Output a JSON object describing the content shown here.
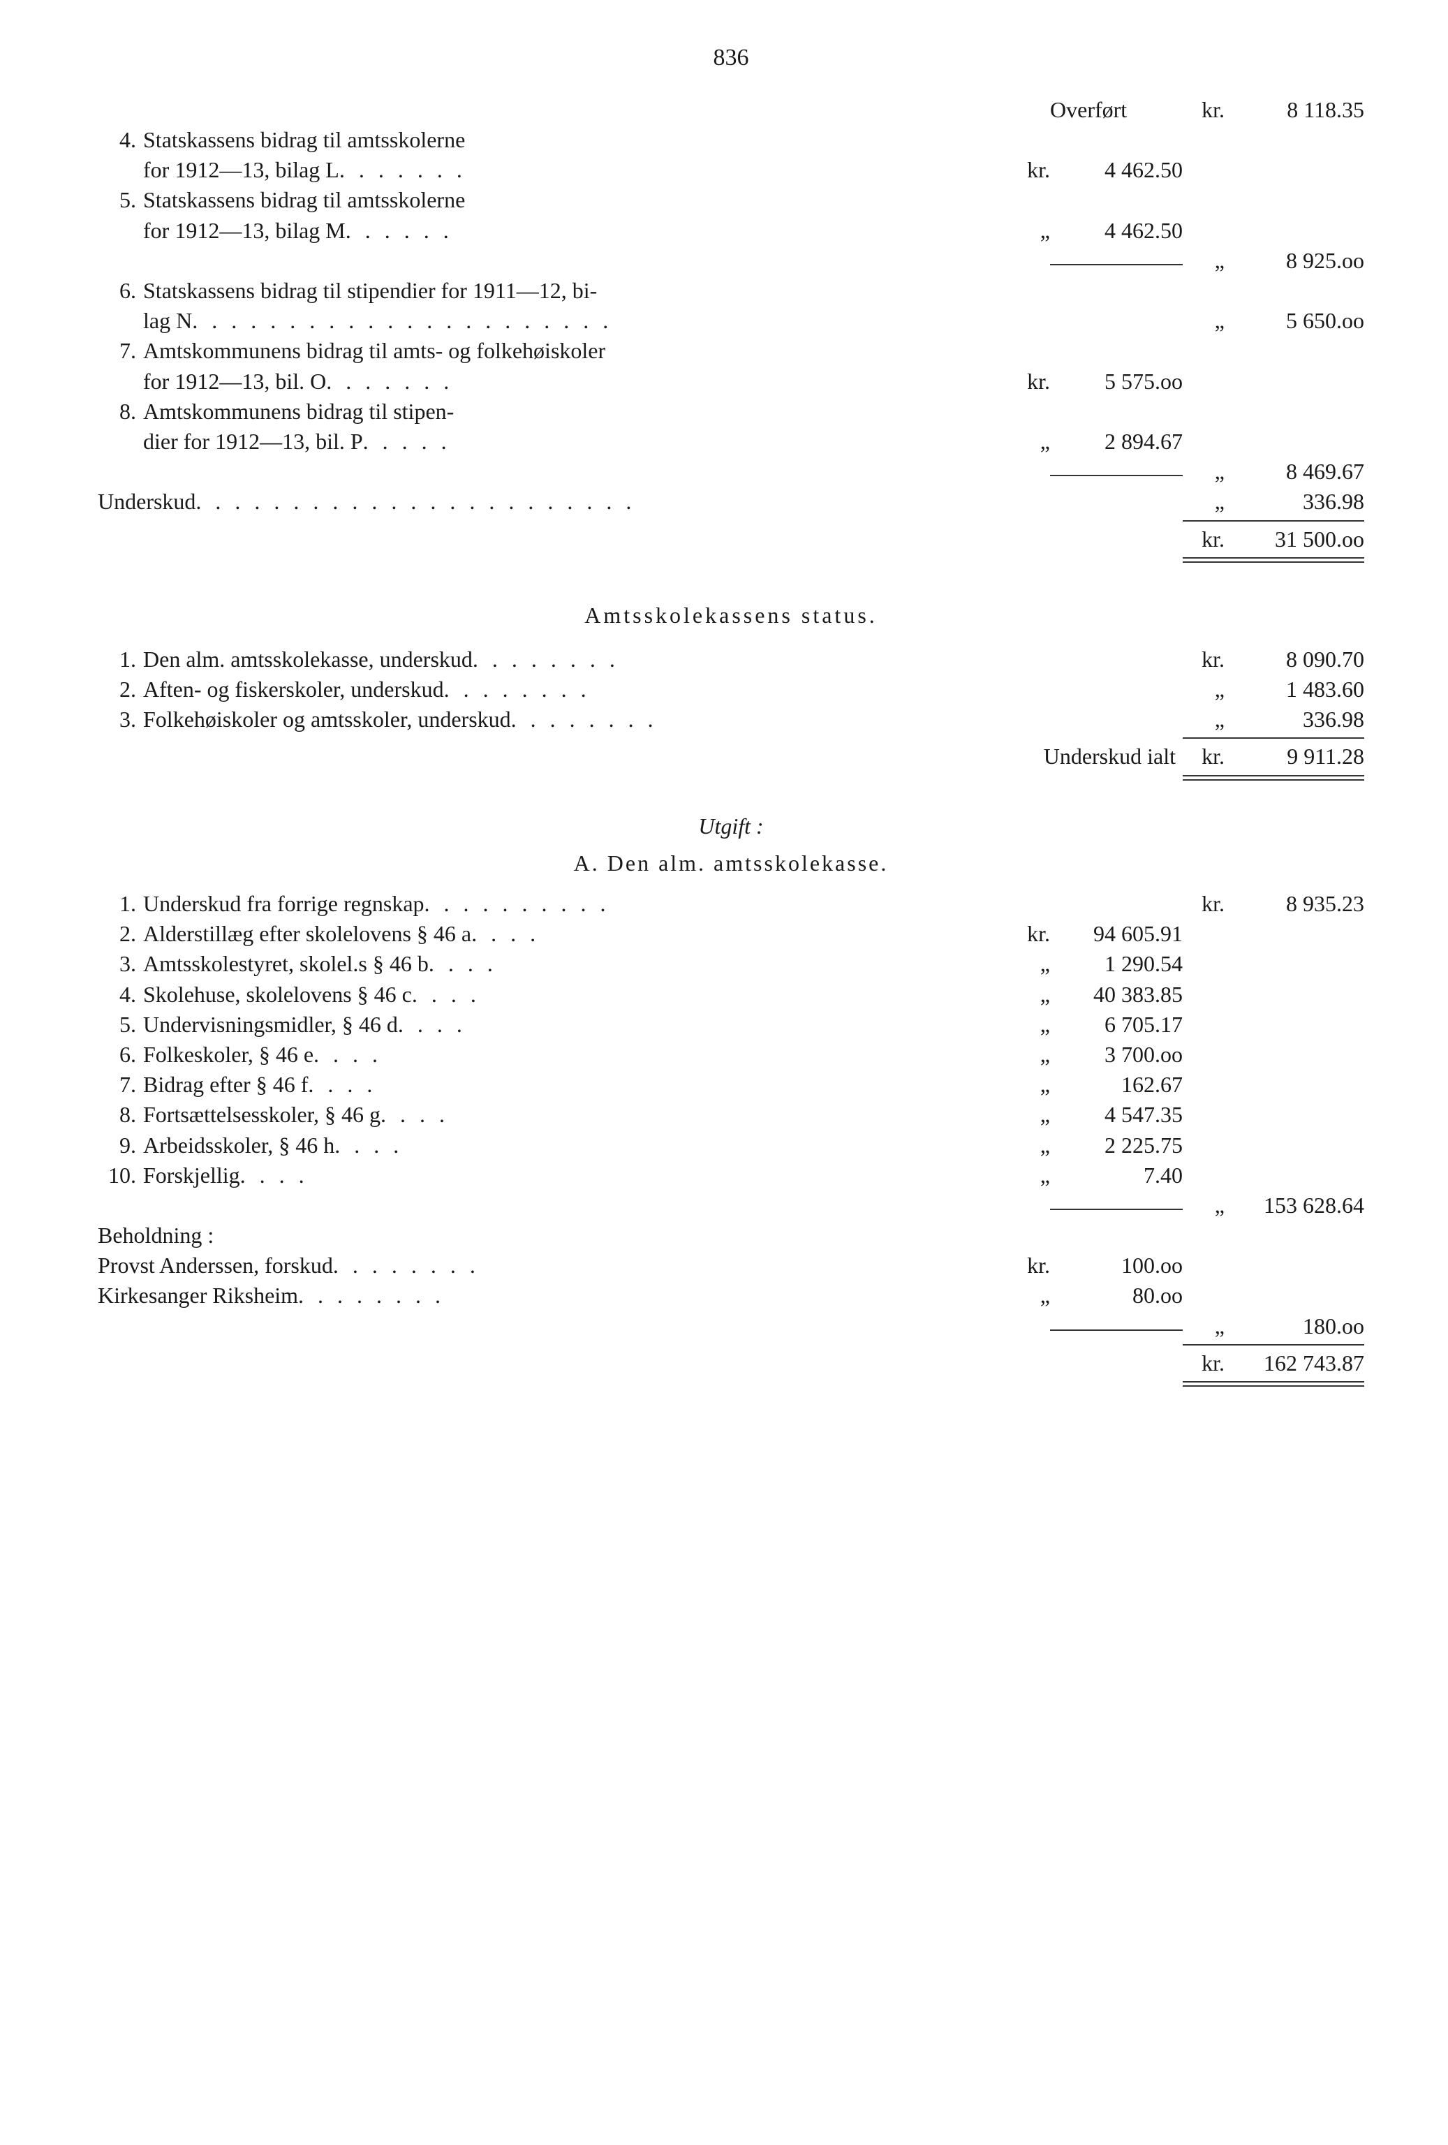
{
  "pageNumber": "836",
  "top": {
    "overfort": {
      "label": "Overført",
      "unit": "kr.",
      "amount": "8 118.35"
    },
    "items": [
      {
        "n": "4.",
        "text": "Statskassens bidrag til amtsskolerne",
        "text2": "for 1912—13, bilag L",
        "unit": "kr.",
        "amount": "4 462.50"
      },
      {
        "n": "5.",
        "text": "Statskassens bidrag til amtsskolerne",
        "text2": "for 1912—13, bilag M",
        "unit": "„",
        "amount": "4 462.50"
      }
    ],
    "subtotal1": {
      "unit": "„",
      "amount": "8 925.oo"
    },
    "item6": {
      "n": "6.",
      "text": "Statskassens bidrag til stipendier for 1911—12, bi-",
      "text2": "lag N",
      "unit": "„",
      "amount": "5 650.oo"
    },
    "item7": {
      "n": "7.",
      "text": "Amtskommunens bidrag til amts- og folkehøiskoler",
      "text2": "for 1912—13, bil. O",
      "unit": "kr.",
      "amount": "5 575.oo"
    },
    "item8": {
      "n": "8.",
      "text": "Amtskommunens bidrag til stipen-",
      "text2": "dier for 1912—13, bil. P",
      "unit": "„",
      "amount": "2 894.67"
    },
    "subtotal2": {
      "unit": "„",
      "amount": "8 469.67"
    },
    "underskud": {
      "label": "Underskud",
      "unit": "„",
      "amount": "336.98"
    },
    "total": {
      "unit": "kr.",
      "amount": "31 500.oo"
    }
  },
  "status": {
    "title": "Amtsskolekassens status.",
    "items": [
      {
        "n": "1.",
        "text": "Den alm. amtsskolekasse, underskud",
        "unit": "kr.",
        "amount": "8 090.70"
      },
      {
        "n": "2.",
        "text": "Aften- og fiskerskoler, underskud",
        "unit": "„",
        "amount": "1 483.60"
      },
      {
        "n": "3.",
        "text": "Folkehøiskoler og amtsskoler, underskud",
        "unit": "„",
        "amount": "336.98"
      }
    ],
    "total": {
      "label": "Underskud ialt",
      "unit": "kr.",
      "amount": "9 911.28"
    }
  },
  "utgift": {
    "title": "Utgift :",
    "subsection": "A.  Den alm. amtsskolekasse.",
    "line1": {
      "n": "1.",
      "text": "Underskud fra forrige regnskap",
      "unit": "kr.",
      "amount": "8 935.23"
    },
    "items": [
      {
        "n": "2.",
        "text": "Alderstillæg efter skolelovens § 46 a",
        "unit": "kr.",
        "amount": "94 605.91"
      },
      {
        "n": "3.",
        "text": "Amtsskolestyret, skolel.s § 46 b",
        "unit": "„",
        "amount": "1 290.54"
      },
      {
        "n": "4.",
        "text": "Skolehuse, skolelovens § 46 c",
        "unit": "„",
        "amount": "40 383.85"
      },
      {
        "n": "5.",
        "text": "Undervisningsmidler, § 46 d",
        "unit": "„",
        "amount": "6 705.17"
      },
      {
        "n": "6.",
        "text": "Folkeskoler, § 46 e",
        "unit": "„",
        "amount": "3 700.oo"
      },
      {
        "n": "7.",
        "text": "Bidrag efter § 46 f",
        "unit": "„",
        "amount": "162.67"
      },
      {
        "n": "8.",
        "text": "Fortsættelsesskoler, § 46 g",
        "unit": "„",
        "amount": "4 547.35"
      },
      {
        "n": "9.",
        "text": "Arbeidsskoler, § 46 h",
        "unit": "„",
        "amount": "2 225.75"
      },
      {
        "n": "10.",
        "text": "Forskjellig",
        "unit": "„",
        "amount": "7.40"
      }
    ],
    "subtotal": {
      "unit": "„",
      "amount": "153 628.64"
    },
    "beholdning": {
      "label": "Beholdning :",
      "items": [
        {
          "text": "Provst Anderssen, forskud",
          "unit": "kr.",
          "amount": "100.oo"
        },
        {
          "text": "Kirkesanger Riksheim",
          "unit": "„",
          "amount": "80.oo"
        }
      ],
      "subtotal": {
        "unit": "„",
        "amount": "180.oo"
      }
    },
    "total": {
      "unit": "kr.",
      "amount": "162 743.87"
    }
  }
}
